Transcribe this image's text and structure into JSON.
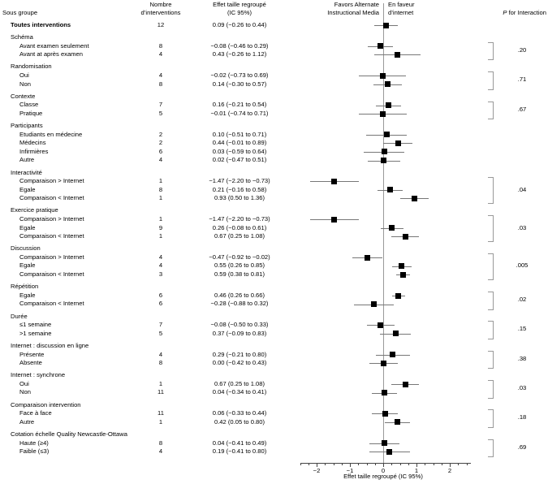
{
  "figure": {
    "columns": {
      "subgroup": "Sous groupe",
      "n_line1": "Nombre",
      "n_line2": "d’interventions",
      "effect_line1": "Effet taille regroupé",
      "effect_line2": "(IC 95%)",
      "p_italic": "P",
      "p_rest": " for Interaction"
    },
    "favors": {
      "left_line1": "Favors Alternate",
      "left_line2": "Instructional Media",
      "right_line1": "En faveur",
      "right_line2": "d’internet"
    }
  },
  "colors": {
    "marker": "#000000",
    "ci_line": "#777777",
    "axis_line": "#444444",
    "zero_line": "#999999",
    "bracket": "#999999",
    "text": "#000000"
  },
  "chart_data": {
    "type": "forest",
    "xlabel": "Effet taille regroupé (IC 95%)",
    "x_range": [
      -2.5,
      2.62
    ],
    "minor_tick_step": 0.25,
    "x_ticks": [
      {
        "value": -2,
        "label": "−2"
      },
      {
        "value": -1,
        "label": "−1"
      },
      {
        "value": 0,
        "label": "0"
      },
      {
        "value": 1,
        "label": "1"
      },
      {
        "value": 2,
        "label": "2"
      }
    ],
    "sections": [
      {
        "header": null,
        "p": null,
        "rows": [
          {
            "label": "Toutes interventions",
            "bold": true,
            "n": "12",
            "ci": "0.09 (−0.26 to 0.44)",
            "est": 0.09,
            "lo": -0.26,
            "hi": 0.44
          }
        ]
      },
      {
        "header": "Schéma",
        "p": ".20",
        "rows": [
          {
            "label": "Avant examen seulement",
            "n": "8",
            "ci": "−0.08 (−0.46 to 0.29)",
            "est": -0.08,
            "lo": -0.46,
            "hi": 0.29
          },
          {
            "label": "Avant at après examen",
            "n": "4",
            "ci": "0.43 (−0.26 to 1.12)",
            "est": 0.43,
            "lo": -0.26,
            "hi": 1.12
          }
        ]
      },
      {
        "header": "Randomisation",
        "p": ".71",
        "rows": [
          {
            "label": "Oui",
            "n": "4",
            "ci": "−0.02 (−0.73 to 0.69)",
            "est": -0.02,
            "lo": -0.73,
            "hi": 0.69
          },
          {
            "label": "Non",
            "n": "8",
            "ci": "0.14 (−0.30 to 0.57)",
            "est": 0.14,
            "lo": -0.3,
            "hi": 0.57
          }
        ]
      },
      {
        "header": "Contexte",
        "p": ".67",
        "rows": [
          {
            "label": "Classe",
            "n": "7",
            "ci": "0.16 (−0.21 to 0.54)",
            "est": 0.16,
            "lo": -0.21,
            "hi": 0.54
          },
          {
            "label": "Pratique",
            "n": "5",
            "ci": "−0.01 (−0.74 to 0.71)",
            "est": -0.01,
            "lo": -0.74,
            "hi": 0.71
          }
        ]
      },
      {
        "header": "Participants",
        "p": null,
        "rows": [
          {
            "label": "Etudiants en médecine",
            "n": "2",
            "ci": "0.10 (−0.51 to 0.71)",
            "est": 0.1,
            "lo": -0.51,
            "hi": 0.71
          },
          {
            "label": "Médecins",
            "n": "2",
            "ci": "0.44 (−0.01 to 0.89)",
            "est": 0.44,
            "lo": -0.01,
            "hi": 0.89
          },
          {
            "label": "Infirmières",
            "n": "6",
            "ci": "0.03 (−0.59 to 0.64)",
            "est": 0.03,
            "lo": -0.59,
            "hi": 0.64
          },
          {
            "label": "Autre",
            "n": "4",
            "ci": "0.02 (−0.47 to 0.51)",
            "est": 0.02,
            "lo": -0.47,
            "hi": 0.51
          }
        ]
      },
      {
        "header": "Interactivité",
        "p": ".04",
        "rows": [
          {
            "label": "Comparaison > Internet",
            "n": "1",
            "ci": "−1.47 (−2.20 to −0.73)",
            "est": -1.47,
            "lo": -2.2,
            "hi": -0.73
          },
          {
            "label": "Egale",
            "n": "8",
            "ci": "0.21 (−0.16 to 0.58)",
            "est": 0.21,
            "lo": -0.16,
            "hi": 0.58
          },
          {
            "label": "Comparaison < Internet",
            "n": "1",
            "ci": "0.93 (0.50 to 1.36)",
            "est": 0.93,
            "lo": 0.5,
            "hi": 1.36
          }
        ]
      },
      {
        "header": "Exercice pratique",
        "p": ".03",
        "rows": [
          {
            "label": "Comparaison > Internet",
            "n": "1",
            "ci": "−1.47 (−2.20 to −0.73)",
            "est": -1.47,
            "lo": -2.2,
            "hi": -0.73
          },
          {
            "label": "Egale",
            "n": "9",
            "ci": "0.26 (−0.08 to 0.61)",
            "est": 0.26,
            "lo": -0.08,
            "hi": 0.61
          },
          {
            "label": "Comparaison < Internet",
            "n": "1",
            "ci": "0.67 (0.25 to 1.08)",
            "est": 0.67,
            "lo": 0.25,
            "hi": 1.08
          }
        ]
      },
      {
        "header": "Discussion",
        "p": ".005",
        "rows": [
          {
            "label": "Comparaison > Internet",
            "n": "4",
            "ci": "−0.47 (−0.92 to −0.02)",
            "est": -0.47,
            "lo": -0.92,
            "hi": -0.02
          },
          {
            "label": "Egale",
            "n": "4",
            "ci": "0.55 (0.26 to 0.85)",
            "est": 0.55,
            "lo": 0.26,
            "hi": 0.85
          },
          {
            "label": "Comparaison < Internet",
            "n": "3",
            "ci": "0.59 (0.38 to 0.81)",
            "est": 0.59,
            "lo": 0.38,
            "hi": 0.81
          }
        ]
      },
      {
        "header": "Répétition",
        "p": ".02",
        "rows": [
          {
            "label": "Egale",
            "n": "6",
            "ci": "0.46 (0.26 to 0.66)",
            "est": 0.46,
            "lo": 0.26,
            "hi": 0.66
          },
          {
            "label": "Comparaison < Internet",
            "n": "6",
            "ci": "−0.28 (−0.88 to 0.32)",
            "est": -0.28,
            "lo": -0.88,
            "hi": 0.32
          }
        ]
      },
      {
        "header": "Durée",
        "p": ".15",
        "rows": [
          {
            "label": "≤1 semaine",
            "n": "7",
            "ci": "−0.08 (−0.50 to 0.33)",
            "est": -0.08,
            "lo": -0.5,
            "hi": 0.33
          },
          {
            "label": ">1 semaine",
            "n": "5",
            "ci": "0.37 (−0.09 to 0.83)",
            "est": 0.37,
            "lo": -0.09,
            "hi": 0.83
          }
        ]
      },
      {
        "header": "Internet : discussion en ligne",
        "p": ".38",
        "rows": [
          {
            "label": "Présente",
            "n": "4",
            "ci": "0.29 (−0.21 to 0.80)",
            "est": 0.29,
            "lo": -0.21,
            "hi": 0.8
          },
          {
            "label": "Absente",
            "n": "8",
            "ci": "0.00 (−0.42 to 0.43)",
            "est": 0.0,
            "lo": -0.42,
            "hi": 0.43
          }
        ]
      },
      {
        "header": "Internet : synchrone",
        "p": ".03",
        "rows": [
          {
            "label": "Oui",
            "n": "1",
            "ci": "0.67 (0.25 to 1.08)",
            "est": 0.67,
            "lo": 0.25,
            "hi": 1.08
          },
          {
            "label": "Non",
            "n": "11",
            "ci": "0.04 (−0.34 to 0.41)",
            "est": 0.04,
            "lo": -0.34,
            "hi": 0.41
          }
        ]
      },
      {
        "header": "Comparaison intervention",
        "p": ".18",
        "rows": [
          {
            "label": "Face à face",
            "n": "11",
            "ci": "0.06 (−0.33 to 0.44)",
            "est": 0.06,
            "lo": -0.33,
            "hi": 0.44
          },
          {
            "label": "Autre",
            "n": "1",
            "ci": "0.42 (0.05 to 0.80)",
            "est": 0.42,
            "lo": 0.05,
            "hi": 0.8
          }
        ]
      },
      {
        "header": "Cotation échelle Quality Newcastle-Ottawa",
        "p": ".69",
        "rows": [
          {
            "label": "Haute (≥4)",
            "n": "8",
            "ci": "0.04 (−0.41 to 0.49)",
            "est": 0.04,
            "lo": -0.41,
            "hi": 0.49
          },
          {
            "label": "Faible (≤3)",
            "n": "4",
            "ci": "0.19 (−0.41 to 0.80)",
            "est": 0.19,
            "lo": -0.41,
            "hi": 0.8
          }
        ]
      }
    ]
  }
}
